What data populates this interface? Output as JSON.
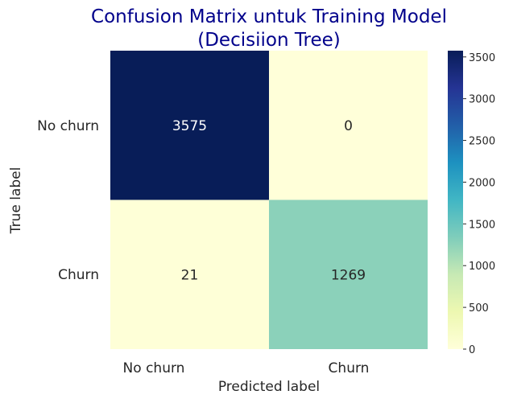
{
  "chart_data": {
    "type": "heatmap",
    "title_lines": [
      "Confusion Matrix untuk Training Model",
      "(Decisiion Tree)"
    ],
    "xlabel": "Predicted label",
    "ylabel": "True label",
    "x_categories": [
      "No churn",
      "Churn"
    ],
    "y_categories": [
      "No churn",
      "Churn"
    ],
    "values": [
      [
        3575,
        0
      ],
      [
        21,
        1269
      ]
    ],
    "colormap": "YlGnBu",
    "vmin": 0,
    "vmax": 3575,
    "colorbar_ticks": [
      "0",
      "500",
      "1000",
      "1500",
      "2000",
      "2500",
      "3000",
      "3500"
    ],
    "colors": {
      "title": "#00008b",
      "dark_annotation": "#ffffff",
      "light_annotation": "#262626"
    }
  }
}
